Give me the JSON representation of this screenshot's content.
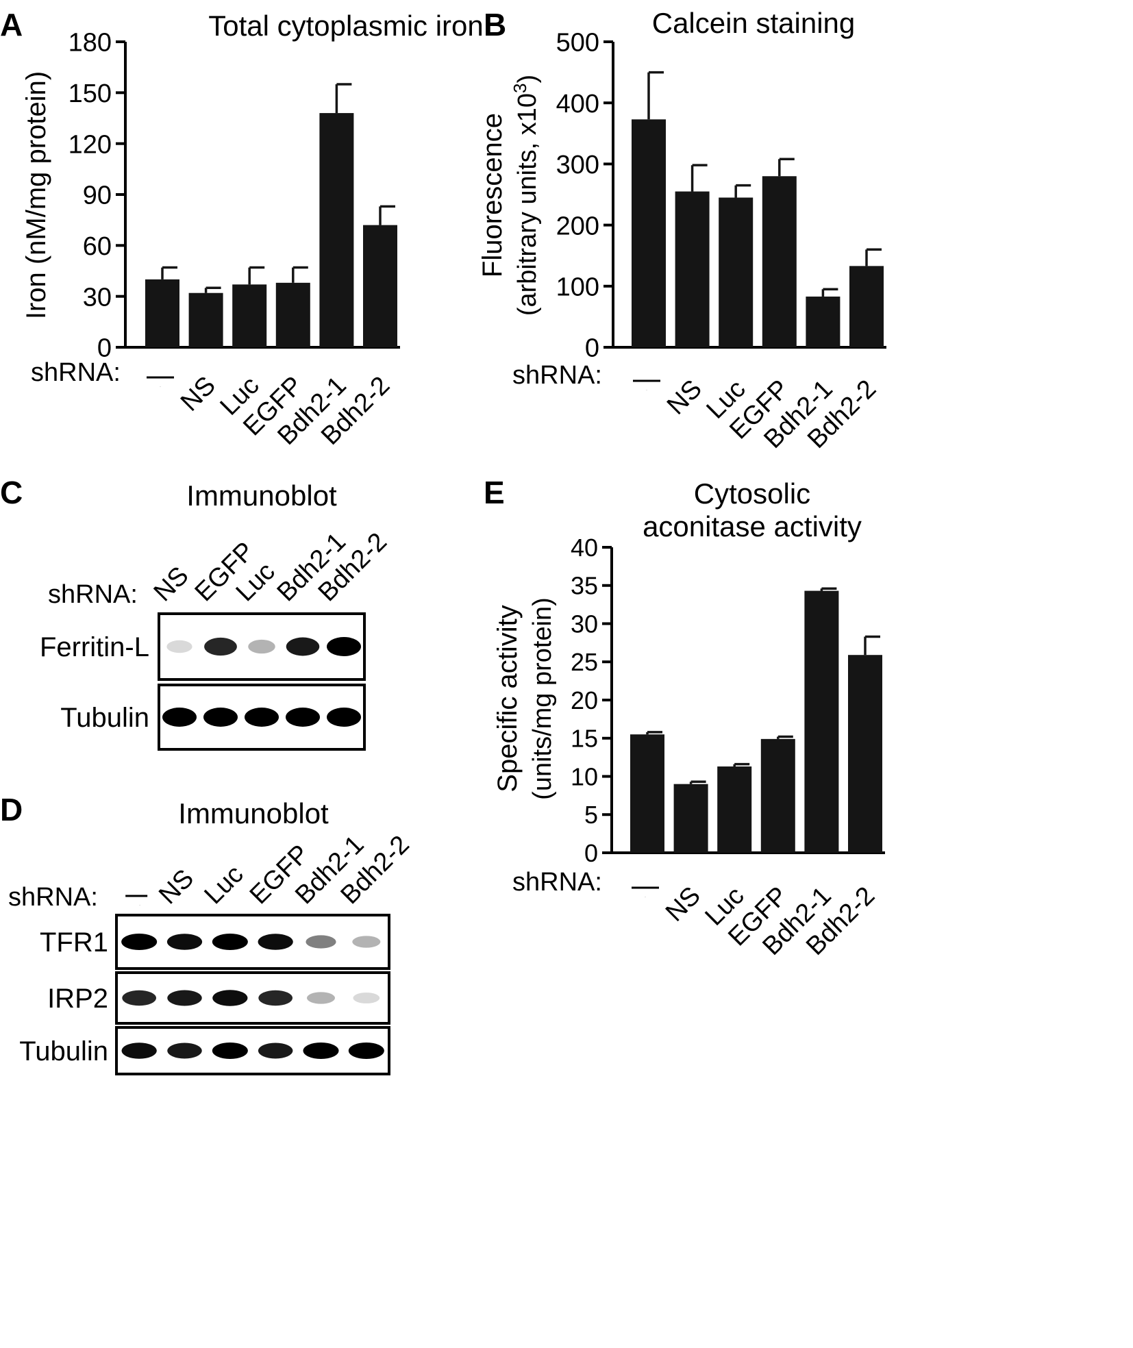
{
  "colors": {
    "bar": "#151515",
    "axis": "#000000",
    "blot_bg": "#ffffff"
  },
  "shrna_label": "shRNA:",
  "chart_data": [
    {
      "panel": "A",
      "type": "bar",
      "title": "Total cytoplasmic iron",
      "ylabel": "Iron (nM/mg protein)",
      "xlabel": "",
      "categories": [
        "—",
        "NS",
        "Luc",
        "EGFP",
        "Bdh2-1",
        "Bdh2-2"
      ],
      "values": [
        40,
        32,
        37,
        38,
        138,
        72
      ],
      "errors": [
        7,
        3,
        10,
        9,
        17,
        11
      ],
      "ylim": [
        0,
        180
      ],
      "yticks": [
        0,
        30,
        60,
        90,
        120,
        150,
        180
      ],
      "grid": false
    },
    {
      "panel": "B",
      "type": "bar",
      "title": "Calcein staining",
      "ylabel": "Fluorescence",
      "ylabel2_main": "(arbitrary units, x10",
      "ylabel2_sup": "3",
      "ylabel2_end": ")",
      "xlabel": "",
      "categories": [
        "—",
        "NS",
        "Luc",
        "EGFP",
        "Bdh2-1",
        "Bdh2-2"
      ],
      "values": [
        373,
        255,
        245,
        280,
        83,
        133
      ],
      "errors": [
        77,
        43,
        20,
        28,
        12,
        27
      ],
      "ylim": [
        0,
        500
      ],
      "yticks": [
        0,
        100,
        200,
        300,
        400,
        500
      ],
      "grid": false
    },
    {
      "panel": "E",
      "type": "bar",
      "title": "Cytosolic",
      "title2": "aconitase activity",
      "ylabel": "Specific activity",
      "ylabel2": "(units/mg protein)",
      "xlabel": "",
      "categories": [
        "—",
        "NS",
        "Luc",
        "EGFP",
        "Bdh2-1",
        "Bdh2-2"
      ],
      "values": [
        15.5,
        9.0,
        11.3,
        14.9,
        34.3,
        25.9
      ],
      "errors": [
        0.3,
        0.3,
        0.3,
        0.3,
        0.3,
        2.4
      ],
      "ylim": [
        0,
        40
      ],
      "yticks": [
        0,
        5,
        10,
        15,
        20,
        25,
        30,
        35,
        40
      ],
      "grid": false
    }
  ],
  "blots": [
    {
      "panel": "C",
      "title": "Immunoblot",
      "lanes": [
        "NS",
        "EGFP",
        "Luc",
        "Bdh2-1",
        "Bdh2-2"
      ],
      "rows": [
        {
          "label": "Ferritin-L",
          "intensity": [
            0.15,
            0.85,
            0.3,
            0.9,
            1.0
          ]
        },
        {
          "label": "Tubulin",
          "intensity": [
            1.0,
            1.0,
            1.0,
            1.0,
            1.0
          ]
        }
      ]
    },
    {
      "panel": "D",
      "title": "Immunoblot",
      "lanes": [
        "—",
        "NS",
        "Luc",
        "EGFP",
        "Bdh2-1",
        "Bdh2-2"
      ],
      "rows": [
        {
          "label": "TFR1",
          "intensity": [
            1.0,
            0.95,
            1.0,
            0.95,
            0.5,
            0.3
          ]
        },
        {
          "label": "IRP2",
          "intensity": [
            0.85,
            0.9,
            0.95,
            0.85,
            0.3,
            0.15
          ]
        },
        {
          "label": "Tubulin",
          "intensity": [
            0.95,
            0.9,
            1.0,
            0.9,
            1.0,
            1.0
          ]
        }
      ]
    }
  ]
}
